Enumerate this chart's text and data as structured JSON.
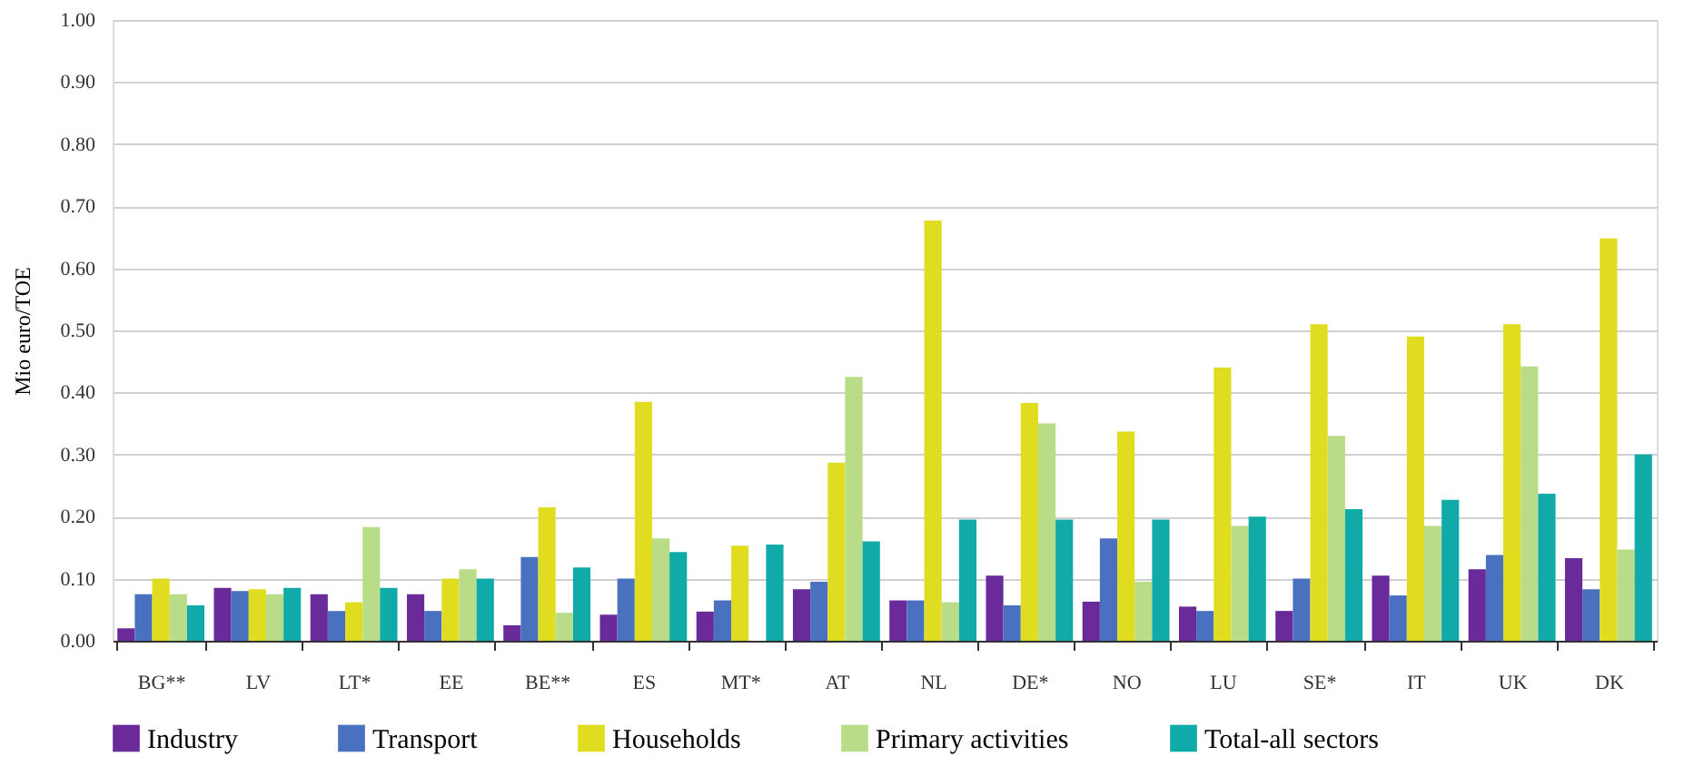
{
  "chart_data": {
    "type": "bar",
    "ylabel": "Mio euro/TOE",
    "categories": [
      "BG**",
      "LV",
      "LT*",
      "EE",
      "BE**",
      "ES",
      "MT*",
      "AT",
      "NL",
      "DE*",
      "NO",
      "LU",
      "SE*",
      "IT",
      "UK",
      "DK"
    ],
    "series": [
      {
        "name": "Industry",
        "color": "#6a2a9a",
        "values": [
          0.02,
          0.085,
          0.075,
          0.075,
          0.025,
          0.042,
          0.047,
          0.083,
          0.065,
          0.105,
          0.063,
          0.055,
          0.048,
          0.105,
          0.115,
          0.133
        ]
      },
      {
        "name": "Transport",
        "color": "#4a70c0",
        "values": [
          0.075,
          0.08,
          0.048,
          0.048,
          0.135,
          0.1,
          0.065,
          0.095,
          0.065,
          0.057,
          0.165,
          0.048,
          0.1,
          0.073,
          0.138,
          0.083
        ]
      },
      {
        "name": "Households",
        "color": "#e0dc20",
        "values": [
          0.1,
          0.083,
          0.062,
          0.1,
          0.215,
          0.385,
          0.153,
          0.287,
          0.677,
          0.383,
          0.337,
          0.44,
          0.51,
          0.49,
          0.51,
          0.648
        ]
      },
      {
        "name": "Primary activities",
        "color": "#b8dc88",
        "values": [
          0.075,
          0.075,
          0.183,
          0.115,
          0.045,
          0.165,
          0,
          0.425,
          0.062,
          0.35,
          0.095,
          0.185,
          0.33,
          0.185,
          0.442,
          0.147
        ]
      },
      {
        "name": "Total-all sectors",
        "color": "#10aaa8",
        "values": [
          0.057,
          0.085,
          0.085,
          0.1,
          0.118,
          0.143,
          0.155,
          0.16,
          0.195,
          0.195,
          0.195,
          0.2,
          0.212,
          0.227,
          0.237,
          0.3
        ]
      }
    ],
    "ylim": [
      0,
      1
    ],
    "yticks": [
      {
        "value": 0,
        "label": "0.00"
      },
      {
        "value": 0.1,
        "label": "0.10"
      },
      {
        "value": 0.2,
        "label": "0.20"
      },
      {
        "value": 0.3,
        "label": "0.30"
      },
      {
        "value": 0.4,
        "label": "0.40"
      },
      {
        "value": 0.5,
        "label": "0.50"
      },
      {
        "value": 0.6,
        "label": "0.60"
      },
      {
        "value": 0.7,
        "label": "0.70"
      },
      {
        "value": 0.8,
        "label": "0.80"
      },
      {
        "value": 0.9,
        "label": "0.90"
      },
      {
        "value": 1,
        "label": "1.00"
      }
    ],
    "grid": "y",
    "legend": "bottom"
  }
}
